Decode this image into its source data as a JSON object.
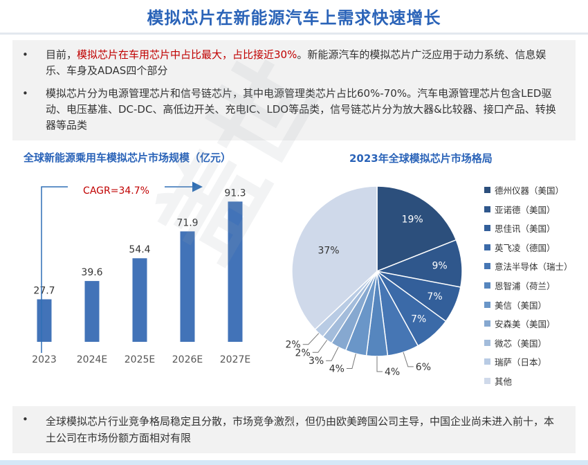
{
  "title": "模拟芯片在新能源汽车上需求快速增长",
  "bullets": [
    {
      "pre": "目前，",
      "highlight": "模拟芯片在车用芯片中占比最大，占比接近30%",
      "post": "。新能源汽车的模拟芯片广泛应用于动力系统、信息娱乐、车身及ADAS四个部分"
    },
    {
      "text": "模拟芯片分为电源管理芯片和信号链芯片，其中电源管理类芯片占比60%-70%。汽车电源管理芯片包含LED驱动、电压基准、DC-DC、高低边开关、充电IC、LDO等品类，信号链芯片分为放大器&比较器、接口产品、转换器等品类"
    }
  ],
  "footer": "全球模拟芯片行业竞争格局稳定且分散，市场竞争激烈，但仍由欧美跨国公司主导，中国企业尚未进入前十，本土公司在市场份额方面相对有限",
  "watermark": "盖世汽车研究院",
  "colors": {
    "title": "#2a63b8",
    "bar": "#4273b8",
    "highlight": "#c00000",
    "cagr": "#c00000"
  },
  "chart_data": [
    {
      "type": "bar",
      "title": "全球新能源乘用车模拟芯片市场规模（亿元）",
      "categories": [
        "2023",
        "2024E",
        "2025E",
        "2026E",
        "2027E"
      ],
      "values": [
        27.7,
        39.6,
        54.4,
        71.9,
        91.3
      ],
      "annotation": "CAGR=34.7%",
      "ylim": [
        0,
        100
      ],
      "grid": false
    },
    {
      "type": "pie",
      "title": "2023年全球模拟芯片市场格局",
      "legend_position": "right",
      "slices": [
        {
          "label": "德州仪器（美国）",
          "value": 19,
          "text": "19%",
          "color": "#2c4f7c"
        },
        {
          "label": "亚诺德（美国）",
          "value": 9,
          "text": "9%",
          "color": "#2f578c"
        },
        {
          "label": "思佳讯（美国）",
          "value": 7,
          "text": "7%",
          "color": "#335f9a"
        },
        {
          "label": "英飞凌（德国）",
          "value": 7,
          "text": "7%",
          "color": "#3b6aa8"
        },
        {
          "label": "意法半导体（瑞士）",
          "value": 6,
          "text": "6%",
          "color": "#4676b4"
        },
        {
          "label": "恩智浦（荷兰）",
          "value": 4,
          "text": "4%",
          "color": "#5686be"
        },
        {
          "label": "美信（美国）",
          "value": 4,
          "text": "4%",
          "color": "#6a96c8"
        },
        {
          "label": "安森美（美国）",
          "value": 3,
          "text": "3%",
          "color": "#86a8d0"
        },
        {
          "label": "微芯（美国）",
          "value": 2,
          "text": "2%",
          "color": "#a3bcdb"
        },
        {
          "label": "瑞萨（日本）",
          "value": 2,
          "text": "2%",
          "color": "#b8cbe4"
        },
        {
          "label": "其他",
          "value": 37,
          "text": "37%",
          "color": "#cfd9ea"
        }
      ]
    }
  ]
}
